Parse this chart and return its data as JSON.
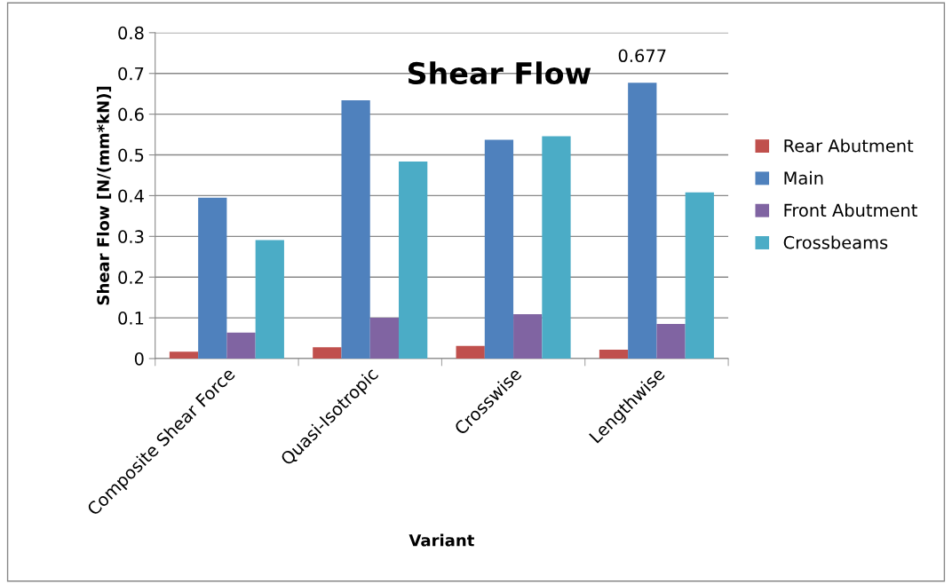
{
  "chart_data": {
    "type": "bar",
    "title": "Shear Flow",
    "xlabel": "Variant",
    "ylabel": "Shear Flow [N/(mm*kN)]",
    "categories": [
      "Composite Shear Force",
      "Quasi-Isotropic",
      "Crosswise",
      "Lengthwise"
    ],
    "series": [
      {
        "name": "Rear Abutment",
        "color": "#c0504d",
        "values": [
          0.017,
          0.028,
          0.031,
          0.022
        ]
      },
      {
        "name": "Main",
        "color": "#4f81bd",
        "values": [
          0.395,
          0.634,
          0.537,
          0.677
        ]
      },
      {
        "name": "Front Abutment",
        "color": "#8064a2",
        "values": [
          0.064,
          0.1,
          0.109,
          0.085
        ]
      },
      {
        "name": "Crossbeams",
        "color": "#4bacc6",
        "values": [
          0.291,
          0.484,
          0.546,
          0.408
        ]
      }
    ],
    "annotations": [
      {
        "text": "0.677",
        "x": "Lengthwise",
        "y": 0.677
      }
    ],
    "ylim": [
      0,
      0.8
    ],
    "yticks": [
      0,
      0.1,
      0.2,
      0.3,
      0.4,
      0.5,
      0.6,
      0.7,
      0.8
    ],
    "grid": "y",
    "legend": "right"
  }
}
